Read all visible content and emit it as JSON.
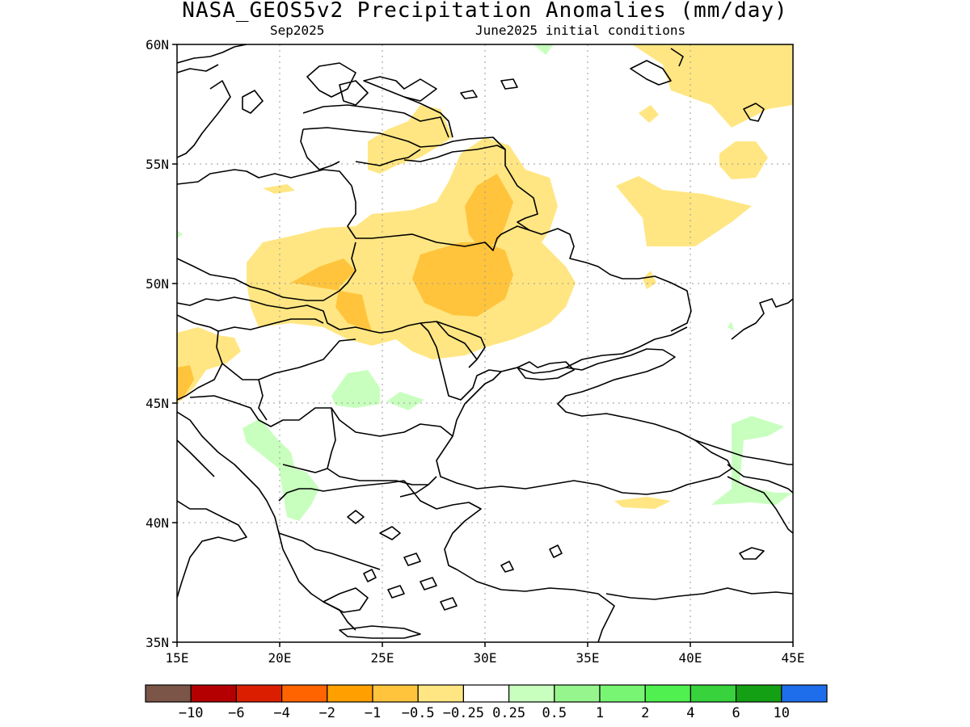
{
  "title": "NASA_GEOS5v2 Precipitation Anomalies (mm/day)",
  "subtitle_left": "Sep2025",
  "subtitle_right": "June2025 initial conditions",
  "map": {
    "lon_range": [
      15,
      45
    ],
    "lat_range": [
      35,
      60
    ],
    "lon_ticks": [
      "15E",
      "20E",
      "25E",
      "30E",
      "35E",
      "40E",
      "45E"
    ],
    "lat_ticks": [
      "60N",
      "55N",
      "50N",
      "45N",
      "40N",
      "35N"
    ],
    "grid": "dotted"
  },
  "colorbar": {
    "colors": [
      "#7a5548",
      "#b40000",
      "#dc1e00",
      "#ff6400",
      "#ffa000",
      "#ffc43c",
      "#ffe682",
      "#ffffff",
      "#c8ffbe",
      "#96f58c",
      "#78f573",
      "#50f050",
      "#37d23c",
      "#14a014",
      "#1e6eeb"
    ],
    "labels": [
      "-10",
      "-6",
      "-4",
      "-2",
      "-1",
      "-0.5",
      "-0.25",
      "0.25",
      "0.5",
      "1",
      "2",
      "4",
      "6",
      "10"
    ]
  },
  "regions": {
    "light_orange": "#ffe682",
    "orange": "#ffc43c",
    "light_green": "#c8ffbe"
  }
}
